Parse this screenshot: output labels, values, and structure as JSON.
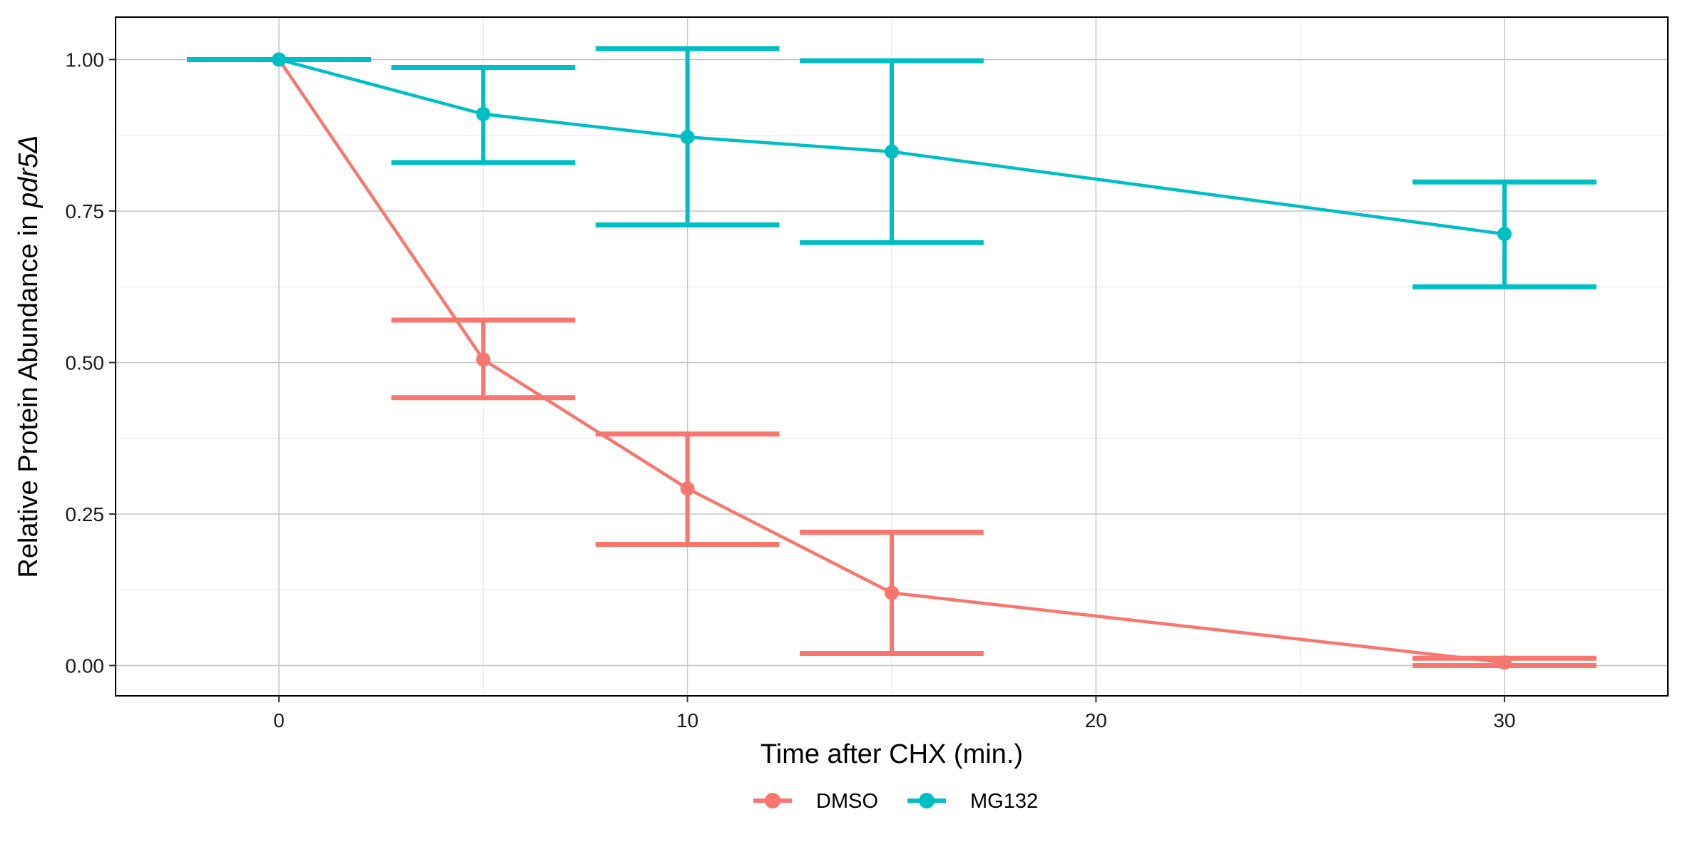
{
  "chart_data": {
    "type": "line",
    "xlabel": "Time after CHX (min.)",
    "ylabel": {
      "prefix": "Relative Protein Abundance in ",
      "italic": "pdr5Δ"
    },
    "xlim": [
      -4,
      34
    ],
    "ylim": [
      -0.05,
      1.07
    ],
    "x_ticks": [
      0,
      10,
      20,
      30
    ],
    "x_tick_labels": [
      "0",
      "10",
      "20",
      "30"
    ],
    "y_ticks": [
      0,
      0.25,
      0.5,
      0.75,
      1
    ],
    "y_tick_labels": [
      "0.00",
      "0.25",
      "0.50",
      "0.75",
      "1.00"
    ],
    "grid": true,
    "legend_position": "bottom",
    "series": [
      {
        "name": "DMSO",
        "color": "#f8766d",
        "x": [
          0,
          5,
          10,
          15,
          30
        ],
        "y": [
          1.0,
          0.505,
          0.292,
          0.12,
          0.005
        ],
        "error_low": [
          1.0,
          0.442,
          0.2,
          0.02,
          0.0
        ],
        "error_high": [
          1.0,
          0.57,
          0.382,
          0.22,
          0.012
        ]
      },
      {
        "name": "MG132",
        "color": "#00bfc4",
        "x": [
          0,
          5,
          10,
          15,
          30
        ],
        "y": [
          1.0,
          0.91,
          0.872,
          0.848,
          0.712
        ],
        "error_low": [
          1.0,
          0.83,
          0.727,
          0.698,
          0.625
        ],
        "error_high": [
          1.0,
          0.987,
          1.018,
          0.998,
          0.798
        ]
      }
    ]
  }
}
